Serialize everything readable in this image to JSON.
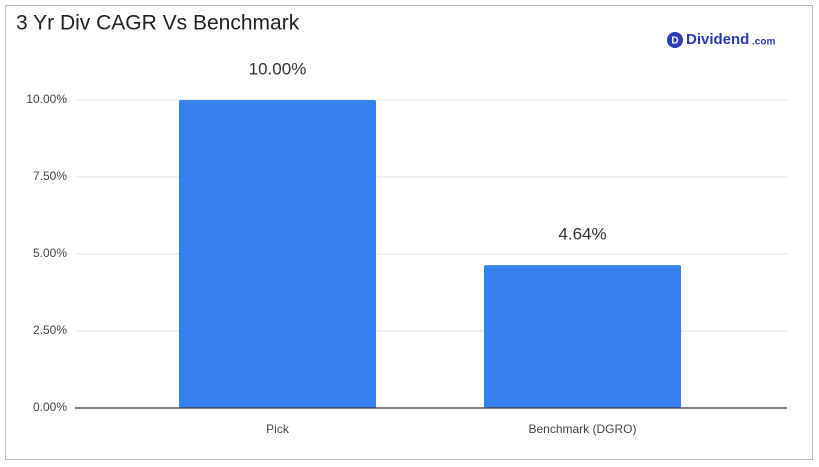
{
  "chart_data": {
    "type": "bar",
    "title": "3 Yr Div CAGR Vs Benchmark",
    "logo": {
      "icon": "D",
      "name": "Dividend",
      "suffix": ".com"
    },
    "categories": [
      "Pick",
      "Benchmark (DGRO)"
    ],
    "values": [
      10,
      4.64
    ],
    "value_labels": [
      "10.00%",
      "4.64%"
    ],
    "color": "#3580ec",
    "ylim": [
      0,
      10
    ],
    "yticks": [
      {
        "value": 0,
        "label": "0.00%"
      },
      {
        "value": 2.5,
        "label": "2.50%"
      },
      {
        "value": 5,
        "label": "5.00%"
      },
      {
        "value": 7.5,
        "label": "7.50%"
      },
      {
        "value": 10,
        "label": "10.00%"
      }
    ],
    "grid": true
  }
}
